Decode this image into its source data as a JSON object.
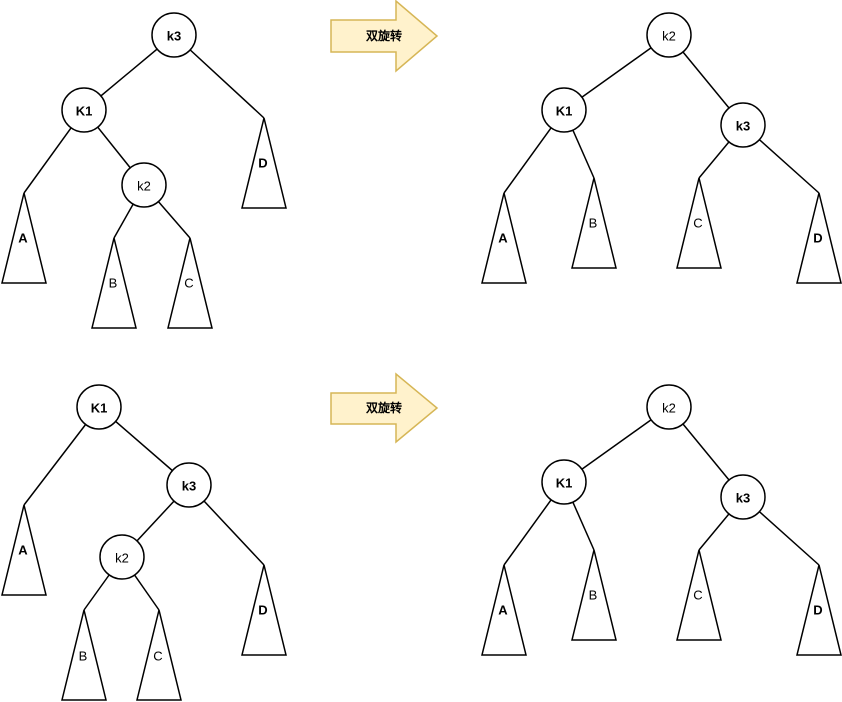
{
  "diagrams": [
    {
      "id": "top-left-tree",
      "nodes": [
        {
          "key": "k3",
          "label": "k3",
          "bold": true
        },
        {
          "key": "k1",
          "label": "K1",
          "bold": true
        },
        {
          "key": "k2",
          "label": "k2",
          "bold": false
        }
      ],
      "subtrees": [
        {
          "key": "A",
          "label": "A",
          "bold": true
        },
        {
          "key": "B",
          "label": "B",
          "bold": false
        },
        {
          "key": "C",
          "label": "C",
          "bold": false
        },
        {
          "key": "D",
          "label": "D",
          "bold": true
        }
      ]
    },
    {
      "id": "top-right-tree",
      "nodes": [
        {
          "key": "k2",
          "label": "k2",
          "bold": false
        },
        {
          "key": "k1",
          "label": "K1",
          "bold": true
        },
        {
          "key": "k3",
          "label": "k3",
          "bold": true
        }
      ],
      "subtrees": [
        {
          "key": "A",
          "label": "A",
          "bold": true
        },
        {
          "key": "B",
          "label": "B",
          "bold": false
        },
        {
          "key": "C",
          "label": "C",
          "bold": false
        },
        {
          "key": "D",
          "label": "D",
          "bold": true
        }
      ]
    },
    {
      "id": "bottom-left-tree",
      "nodes": [
        {
          "key": "k1",
          "label": "K1",
          "bold": true
        },
        {
          "key": "k3",
          "label": "k3",
          "bold": true
        },
        {
          "key": "k2",
          "label": "k2",
          "bold": false
        }
      ],
      "subtrees": [
        {
          "key": "A",
          "label": "A",
          "bold": true
        },
        {
          "key": "B",
          "label": "B",
          "bold": false
        },
        {
          "key": "C",
          "label": "C",
          "bold": false
        },
        {
          "key": "D",
          "label": "D",
          "bold": true
        }
      ]
    },
    {
      "id": "bottom-right-tree",
      "nodes": [
        {
          "key": "k2",
          "label": "k2",
          "bold": false
        },
        {
          "key": "k1",
          "label": "K1",
          "bold": true
        },
        {
          "key": "k3",
          "label": "k3",
          "bold": true
        }
      ],
      "subtrees": [
        {
          "key": "A",
          "label": "A",
          "bold": true
        },
        {
          "key": "B",
          "label": "B",
          "bold": false
        },
        {
          "key": "C",
          "label": "C",
          "bold": false
        },
        {
          "key": "D",
          "label": "D",
          "bold": true
        }
      ]
    }
  ],
  "arrows": [
    {
      "label": "双旋转",
      "fill": "#fff2cc",
      "stroke": "#d6b656"
    },
    {
      "label": "双旋转",
      "fill": "#fff2cc",
      "stroke": "#d6b656"
    }
  ]
}
